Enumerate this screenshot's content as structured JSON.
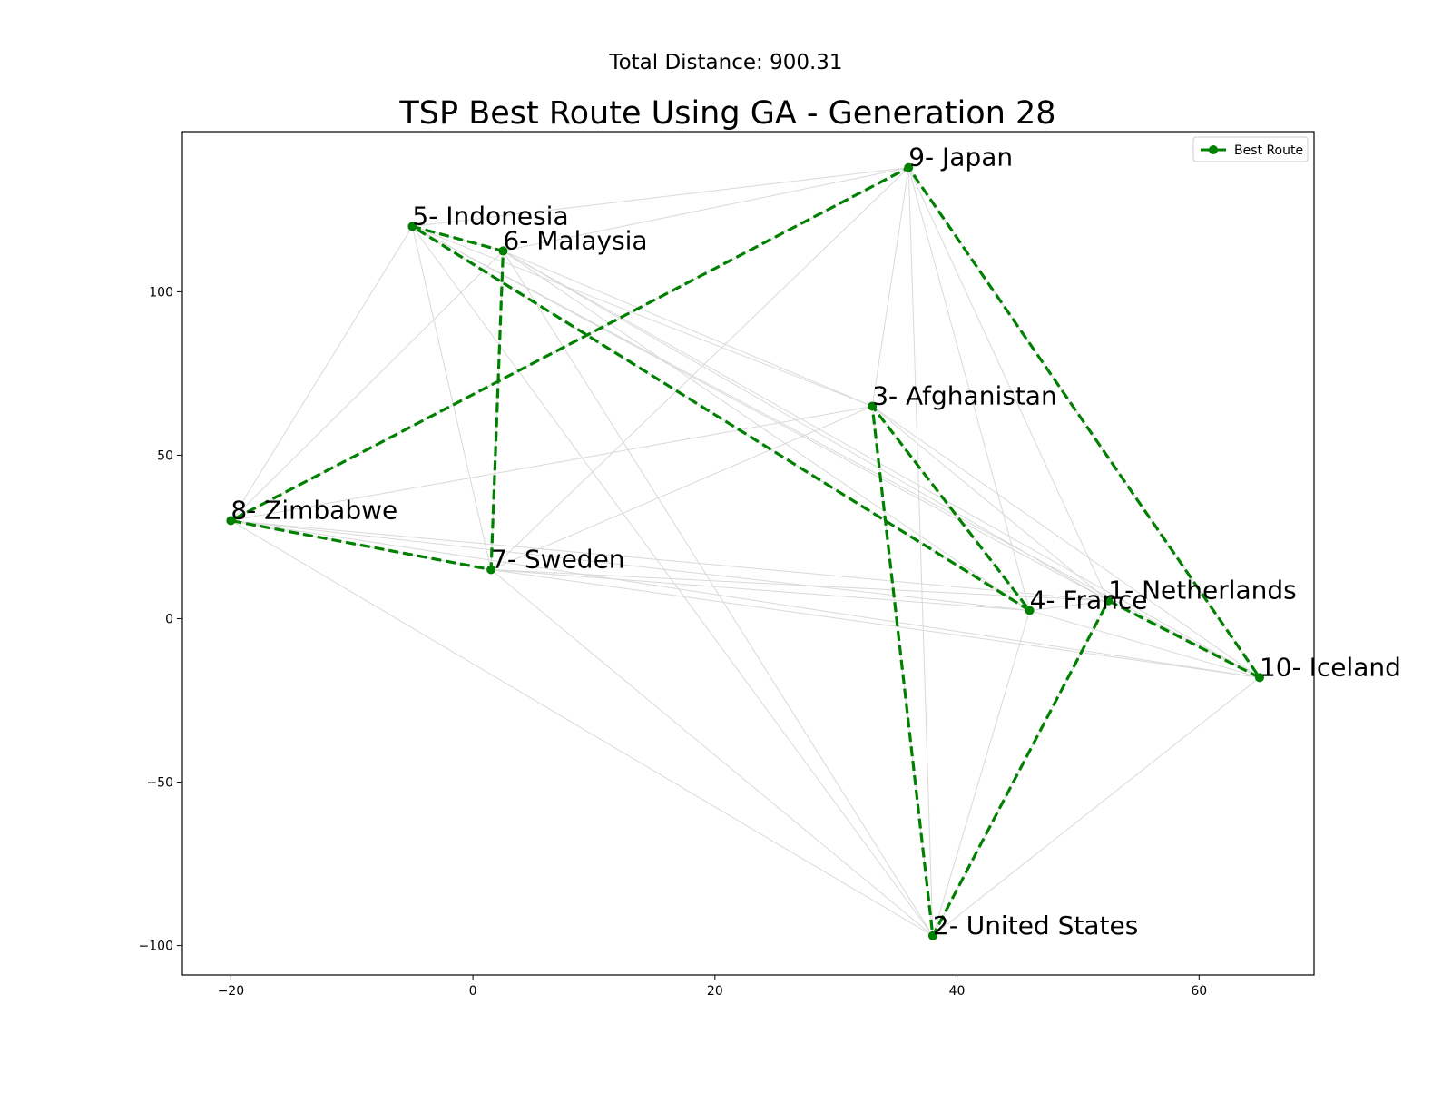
{
  "suptitle": "Total Distance: 900.31",
  "chart_data": {
    "type": "line",
    "title": "TSP Best Route Using GA - Generation 28",
    "xlabel": "",
    "ylabel": "",
    "xlim": [
      -24,
      69.5
    ],
    "ylim": [
      -109,
      149
    ],
    "xticks": [
      -20,
      0,
      20,
      40,
      60
    ],
    "xtick_labels": [
      "−20",
      "0",
      "20",
      "40",
      "60"
    ],
    "yticks": [
      -100,
      -50,
      0,
      50,
      100
    ],
    "ytick_labels": [
      "−100",
      "−50",
      "0",
      "50",
      "100"
    ],
    "grid": false,
    "legend_position": "top-right",
    "colors": {
      "route": "#008000",
      "background_edges": "#d9d9d9"
    },
    "cities": [
      {
        "label": "1- Netherlands",
        "x": 52.5,
        "y": 5.5
      },
      {
        "label": "2- United States",
        "x": 38,
        "y": -97
      },
      {
        "label": "3- Afghanistan",
        "x": 33,
        "y": 65
      },
      {
        "label": "4- France",
        "x": 46,
        "y": 2.5
      },
      {
        "label": "5- Indonesia",
        "x": -5,
        "y": 120
      },
      {
        "label": "6- Malaysia",
        "x": 2.5,
        "y": 112.5
      },
      {
        "label": "7- Sweden",
        "x": 1.5,
        "y": 15
      },
      {
        "label": "8- Zimbabwe",
        "x": -20,
        "y": 30
      },
      {
        "label": "9- Japan",
        "x": 36,
        "y": 138
      },
      {
        "label": "10- Iceland",
        "x": 65,
        "y": -18
      }
    ],
    "series": [
      {
        "name": "Best Route",
        "x": [
          52.5,
          65,
          36,
          -20,
          1.5,
          2.5,
          -5,
          46,
          33,
          38,
          52.5
        ],
        "y": [
          5.5,
          -18,
          138,
          30,
          15,
          112.5,
          120,
          2.5,
          65,
          -97,
          5.5
        ]
      }
    ]
  }
}
